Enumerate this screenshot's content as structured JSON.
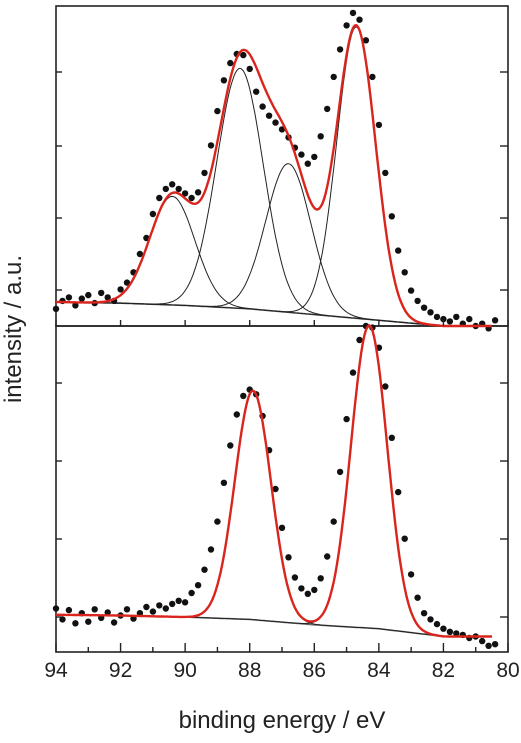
{
  "chart_data": {
    "type": "scatter",
    "xlabel": "binding energy / eV",
    "ylabel": "intensity / a.u.",
    "x_ticks": [
      94,
      92,
      90,
      88,
      86,
      84,
      82,
      80
    ],
    "xlim": [
      94,
      80
    ],
    "x_reversed": true,
    "y_tick_labels_shown": false,
    "panels": [
      {
        "name": "top",
        "ylim": [
          0.8,
          3.6
        ],
        "background": [
          [
            94,
            1.01
          ],
          [
            92,
            1.0
          ],
          [
            90,
            0.98
          ],
          [
            88,
            0.95
          ],
          [
            86,
            0.9
          ],
          [
            84,
            0.85
          ],
          [
            82,
            0.8
          ],
          [
            80.5,
            0.8
          ]
        ],
        "components": [
          {
            "center": 90.4,
            "height": 0.95,
            "sigma": 0.7
          },
          {
            "center": 88.3,
            "height": 2.1,
            "sigma": 0.72
          },
          {
            "center": 86.8,
            "height": 1.3,
            "sigma": 0.7
          },
          {
            "center": 84.7,
            "height": 2.55,
            "sigma": 0.6
          }
        ],
        "data_points": [
          [
            94.0,
            0.95
          ],
          [
            93.8,
            1.02
          ],
          [
            93.6,
            1.05
          ],
          [
            93.4,
            0.98
          ],
          [
            93.2,
            1.04
          ],
          [
            93.0,
            1.07
          ],
          [
            92.8,
            1.0
          ],
          [
            92.6,
            1.09
          ],
          [
            92.4,
            1.05
          ],
          [
            92.2,
            1.02
          ],
          [
            92.0,
            1.12
          ],
          [
            91.8,
            1.18
          ],
          [
            91.6,
            1.27
          ],
          [
            91.4,
            1.43
          ],
          [
            91.2,
            1.57
          ],
          [
            91.0,
            1.78
          ],
          [
            90.8,
            1.92
          ],
          [
            90.6,
            2.0
          ],
          [
            90.4,
            2.04
          ],
          [
            90.2,
            2.0
          ],
          [
            90.0,
            1.96
          ],
          [
            89.8,
            1.92
          ],
          [
            89.6,
            1.97
          ],
          [
            89.4,
            2.14
          ],
          [
            89.2,
            2.38
          ],
          [
            89.0,
            2.68
          ],
          [
            88.8,
            2.95
          ],
          [
            88.6,
            3.1
          ],
          [
            88.4,
            3.18
          ],
          [
            88.2,
            3.17
          ],
          [
            88.0,
            3.05
          ],
          [
            87.8,
            2.85
          ],
          [
            87.6,
            2.72
          ],
          [
            87.4,
            2.64
          ],
          [
            87.2,
            2.58
          ],
          [
            87.0,
            2.52
          ],
          [
            86.8,
            2.45
          ],
          [
            86.6,
            2.36
          ],
          [
            86.4,
            2.3
          ],
          [
            86.2,
            2.22
          ],
          [
            86.0,
            2.28
          ],
          [
            85.8,
            2.46
          ],
          [
            85.6,
            2.7
          ],
          [
            85.4,
            2.98
          ],
          [
            85.2,
            3.22
          ],
          [
            85.0,
            3.43
          ],
          [
            84.8,
            3.54
          ],
          [
            84.6,
            3.48
          ],
          [
            84.4,
            3.3
          ],
          [
            84.2,
            2.98
          ],
          [
            84.0,
            2.56
          ],
          [
            83.8,
            2.14
          ],
          [
            83.6,
            1.76
          ],
          [
            83.4,
            1.46
          ],
          [
            83.2,
            1.27
          ],
          [
            83.0,
            1.11
          ],
          [
            82.8,
            1.02
          ],
          [
            82.6,
            0.96
          ],
          [
            82.4,
            0.92
          ],
          [
            82.2,
            0.88
          ],
          [
            82.0,
            0.86
          ],
          [
            81.8,
            0.84
          ],
          [
            81.6,
            0.88
          ],
          [
            81.4,
            0.82
          ],
          [
            81.2,
            0.86
          ],
          [
            81.0,
            0.8
          ],
          [
            80.8,
            0.82
          ],
          [
            80.6,
            0.78
          ],
          [
            80.4,
            0.85
          ]
        ]
      },
      {
        "name": "bottom",
        "ylim": [
          0.8,
          5.0
        ],
        "background": [
          [
            94,
            1.28
          ],
          [
            92,
            1.27
          ],
          [
            90,
            1.25
          ],
          [
            88,
            1.22
          ],
          [
            86,
            1.15
          ],
          [
            84,
            1.1
          ],
          [
            82,
            1.0
          ],
          [
            80.5,
            1.0
          ]
        ],
        "components": [
          {
            "center": 87.9,
            "height": 2.95,
            "sigma": 0.56
          },
          {
            "center": 84.3,
            "height": 3.9,
            "sigma": 0.56
          }
        ],
        "data_points": [
          [
            94.0,
            1.36
          ],
          [
            93.8,
            1.22
          ],
          [
            93.6,
            1.34
          ],
          [
            93.4,
            1.17
          ],
          [
            93.2,
            1.3
          ],
          [
            93.0,
            1.19
          ],
          [
            92.8,
            1.35
          ],
          [
            92.6,
            1.24
          ],
          [
            92.4,
            1.31
          ],
          [
            92.2,
            1.18
          ],
          [
            92.0,
            1.27
          ],
          [
            91.8,
            1.35
          ],
          [
            91.6,
            1.23
          ],
          [
            91.4,
            1.3
          ],
          [
            91.2,
            1.38
          ],
          [
            91.0,
            1.32
          ],
          [
            90.8,
            1.4
          ],
          [
            90.6,
            1.36
          ],
          [
            90.4,
            1.42
          ],
          [
            90.2,
            1.46
          ],
          [
            90.0,
            1.44
          ],
          [
            89.8,
            1.56
          ],
          [
            89.6,
            1.66
          ],
          [
            89.4,
            1.86
          ],
          [
            89.2,
            2.12
          ],
          [
            89.0,
            2.48
          ],
          [
            88.8,
            2.98
          ],
          [
            88.6,
            3.46
          ],
          [
            88.4,
            3.86
          ],
          [
            88.2,
            4.1
          ],
          [
            88.0,
            4.18
          ],
          [
            87.8,
            4.12
          ],
          [
            87.6,
            3.84
          ],
          [
            87.4,
            3.4
          ],
          [
            87.2,
            2.9
          ],
          [
            87.0,
            2.4
          ],
          [
            86.8,
            2.02
          ],
          [
            86.6,
            1.76
          ],
          [
            86.4,
            1.62
          ],
          [
            86.2,
            1.55
          ],
          [
            86.0,
            1.6
          ],
          [
            85.8,
            1.75
          ],
          [
            85.6,
            2.03
          ],
          [
            85.4,
            2.48
          ],
          [
            85.2,
            3.12
          ],
          [
            85.0,
            3.8
          ],
          [
            84.8,
            4.4
          ],
          [
            84.6,
            4.82
          ],
          [
            84.4,
            5.0
          ],
          [
            84.2,
            4.98
          ],
          [
            84.0,
            4.72
          ],
          [
            83.8,
            4.22
          ],
          [
            83.6,
            3.56
          ],
          [
            83.4,
            2.86
          ],
          [
            83.2,
            2.26
          ],
          [
            83.0,
            1.8
          ],
          [
            82.8,
            1.5
          ],
          [
            82.6,
            1.3
          ],
          [
            82.4,
            1.22
          ],
          [
            82.2,
            1.16
          ],
          [
            82.0,
            1.1
          ],
          [
            81.8,
            1.06
          ],
          [
            81.6,
            1.04
          ],
          [
            81.4,
            1.02
          ],
          [
            81.2,
            0.98
          ],
          [
            81.0,
            1.0
          ],
          [
            80.8,
            0.94
          ],
          [
            80.6,
            0.88
          ],
          [
            80.4,
            0.9
          ]
        ]
      }
    ]
  }
}
